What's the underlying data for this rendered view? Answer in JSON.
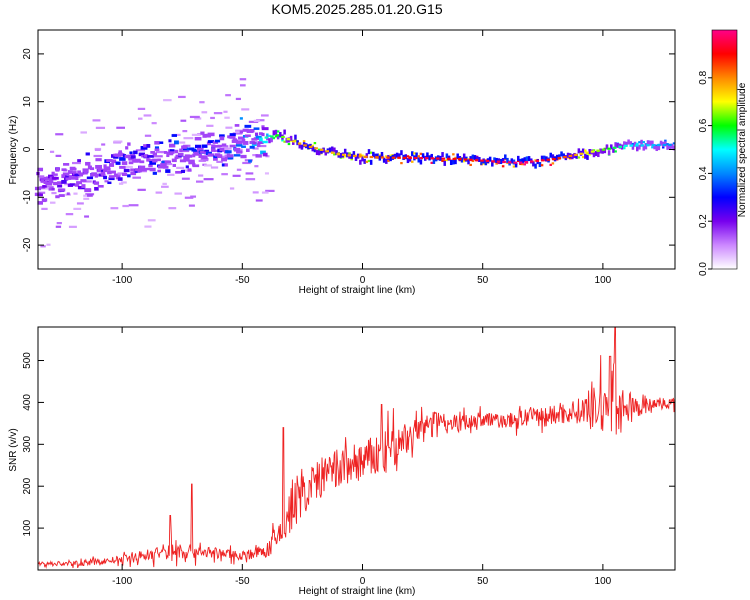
{
  "title": "KOM5.2025.285.01.20.G15",
  "chart_data": [
    {
      "type": "heatmap",
      "title": "KOM5.2025.285.01.20.G15",
      "xlabel": "Height of straight line (km)",
      "ylabel": "Frequency (Hz)",
      "xlim": [
        -135,
        130
      ],
      "ylim": [
        -25,
        25
      ],
      "xticks": [
        -100,
        -50,
        0,
        50,
        100
      ],
      "yticks": [
        -20,
        -10,
        0,
        10,
        20
      ],
      "xtick_labels": [
        "-100",
        "-50",
        "0",
        "50",
        "100"
      ],
      "ytick_labels": [
        "-20",
        "-10",
        "0",
        "10",
        "20"
      ],
      "grid": false,
      "colorbar": {
        "label": "Normalized spectral amplitude",
        "range": [
          0,
          1
        ],
        "ticks": [
          0.0,
          0.2,
          0.4,
          0.6,
          0.8
        ],
        "tick_labels": [
          "0.0",
          "0.2",
          "0.4",
          "0.6",
          "0.8"
        ],
        "colors": [
          "#ffffff",
          "#cc88ff",
          "#7700ee",
          "#0000ff",
          "#0088ff",
          "#00ffff",
          "#00ff00",
          "#ffff00",
          "#ff8800",
          "#ff0000",
          "#ff0088"
        ]
      },
      "ridge": {
        "x": [
          -135,
          -120,
          -100,
          -80,
          -60,
          -45,
          -35,
          -25,
          -10,
          0,
          10,
          25,
          40,
          55,
          65,
          80,
          95,
          110,
          130
        ],
        "y": [
          -8,
          -6,
          -3.5,
          -1.5,
          0.5,
          2,
          3,
          1,
          -1,
          -1.5,
          -1.7,
          -1.8,
          -2.0,
          -2.5,
          -2.8,
          -2.0,
          -0.5,
          0.8,
          1.0
        ],
        "peak_amplitude": [
          0.2,
          0.25,
          0.3,
          0.35,
          0.35,
          0.45,
          0.6,
          0.8,
          0.75,
          0.8,
          0.85,
          0.95,
          0.9,
          0.95,
          1.0,
          0.9,
          0.7,
          0.5,
          0.4
        ]
      },
      "diffuse_region": {
        "x_range": [
          -135,
          -40
        ],
        "y_range": [
          -25,
          25
        ],
        "amplitude": 0.1
      }
    },
    {
      "type": "line",
      "title": "",
      "xlabel": "Height of straight line (km)",
      "ylabel": "SNR (v/v)",
      "xlim": [
        -135,
        130
      ],
      "ylim": [
        0,
        580
      ],
      "xticks": [
        -100,
        -50,
        0,
        50,
        100
      ],
      "yticks": [
        100,
        200,
        300,
        400,
        500
      ],
      "xtick_labels": [
        "-100",
        "-50",
        "0",
        "50",
        "100"
      ],
      "ytick_labels": [
        "100",
        "200",
        "300",
        "400",
        "500"
      ],
      "grid": false,
      "series": [
        {
          "name": "SNR",
          "color": "#ee2222",
          "x": [
            -135,
            -120,
            -100,
            -90,
            -80,
            -70,
            -60,
            -50,
            -40,
            -35,
            -30,
            -25,
            -20,
            -10,
            0,
            10,
            20,
            30,
            40,
            50,
            60,
            70,
            80,
            90,
            100,
            105,
            110,
            120,
            130
          ],
          "baseline": [
            15,
            15,
            25,
            35,
            45,
            45,
            40,
            35,
            45,
            80,
            140,
            180,
            210,
            240,
            260,
            280,
            320,
            360,
            350,
            360,
            355,
            365,
            370,
            380,
            390,
            400,
            380,
            395,
            400
          ],
          "noise": [
            10,
            10,
            15,
            25,
            40,
            30,
            20,
            20,
            25,
            60,
            110,
            80,
            80,
            90,
            80,
            90,
            60,
            35,
            35,
            30,
            30,
            40,
            40,
            50,
            110,
            140,
            50,
            25,
            20
          ],
          "spikes": [
            {
              "x": -80,
              "y": 130
            },
            {
              "x": -71,
              "y": 205
            },
            {
              "x": -33,
              "y": 340
            },
            {
              "x": 8,
              "y": 395
            },
            {
              "x": 103,
              "y": 510
            },
            {
              "x": 105,
              "y": 580
            }
          ]
        }
      ]
    }
  ]
}
